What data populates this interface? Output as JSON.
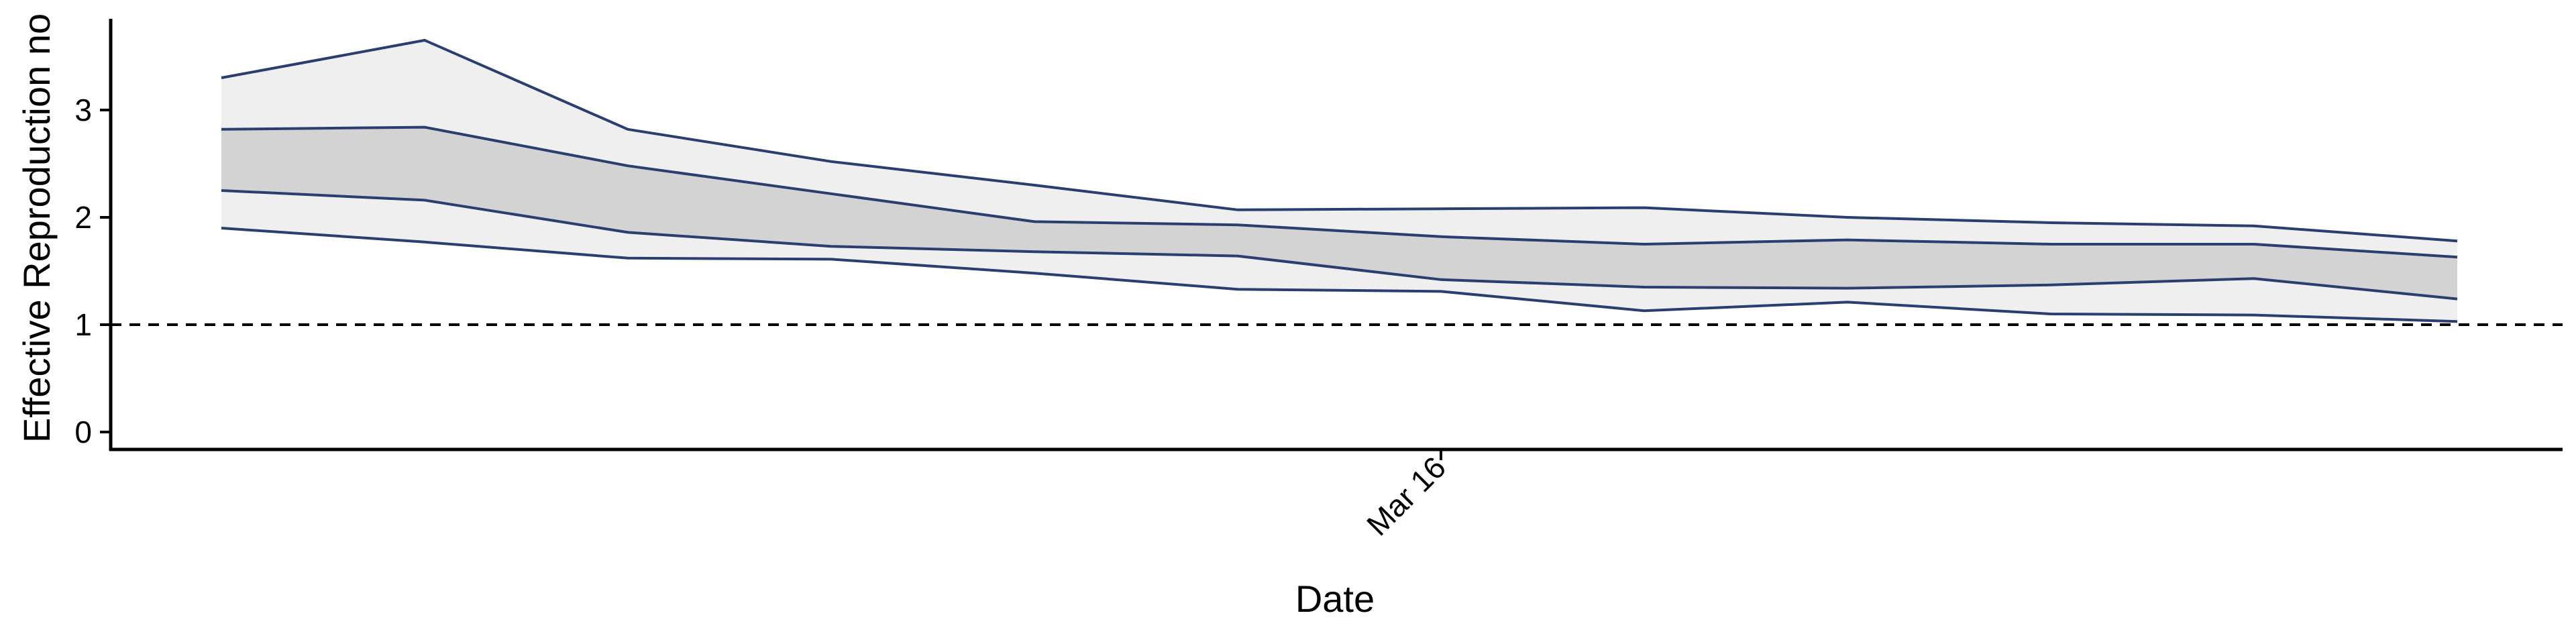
{
  "chart_data": {
    "type": "area",
    "title": "",
    "xlabel": "Date",
    "ylabel": "Effective Reproduction no",
    "x": [
      "2020-03-10",
      "2020-03-11",
      "2020-03-12",
      "2020-03-13",
      "2020-03-14",
      "2020-03-15",
      "2020-03-16",
      "2020-03-17",
      "2020-03-18",
      "2020-03-19",
      "2020-03-20",
      "2020-03-21"
    ],
    "x_tick_labels": [
      {
        "date": "2020-03-16",
        "label": "Mar 16"
      }
    ],
    "y_ticks": [
      0,
      1,
      2,
      3
    ],
    "ylim": [
      0,
      3.8
    ],
    "reference_line": {
      "y": 1,
      "style": "dashed"
    },
    "series": [
      {
        "band": "outer",
        "upper": [
          3.3,
          3.65,
          2.82,
          2.52,
          2.3,
          2.07,
          2.08,
          2.09,
          2.0,
          1.95,
          1.92,
          1.78
        ],
        "lower": [
          1.9,
          1.77,
          1.62,
          1.61,
          1.48,
          1.33,
          1.31,
          1.13,
          1.21,
          1.1,
          1.09,
          1.03
        ]
      },
      {
        "band": "inner",
        "upper": [
          2.82,
          2.84,
          2.48,
          2.22,
          1.96,
          1.93,
          1.82,
          1.75,
          1.79,
          1.75,
          1.75,
          1.63
        ],
        "lower": [
          2.25,
          2.16,
          1.86,
          1.73,
          1.68,
          1.64,
          1.42,
          1.35,
          1.34,
          1.37,
          1.43,
          1.24
        ]
      }
    ],
    "colors": {
      "outer_fill": "#efefef",
      "inner_fill": "#d3d3d3",
      "line": "#2b3e70",
      "axis": "#000000"
    },
    "grid": false,
    "legend": "none"
  }
}
